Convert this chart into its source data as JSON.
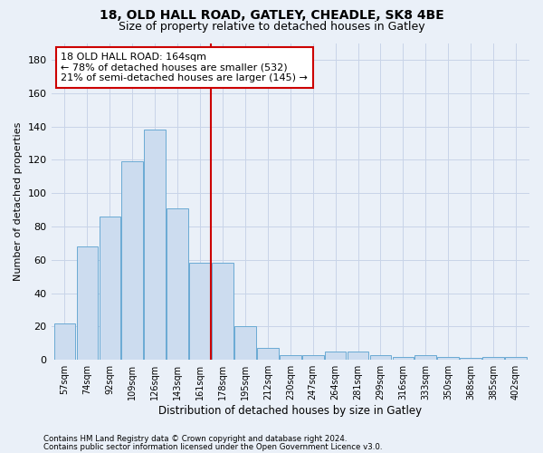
{
  "title1": "18, OLD HALL ROAD, GATLEY, CHEADLE, SK8 4BE",
  "title2": "Size of property relative to detached houses in Gatley",
  "xlabel": "Distribution of detached houses by size in Gatley",
  "ylabel": "Number of detached properties",
  "categories": [
    "57sqm",
    "74sqm",
    "92sqm",
    "109sqm",
    "126sqm",
    "143sqm",
    "161sqm",
    "178sqm",
    "195sqm",
    "212sqm",
    "230sqm",
    "247sqm",
    "264sqm",
    "281sqm",
    "299sqm",
    "316sqm",
    "333sqm",
    "350sqm",
    "368sqm",
    "385sqm",
    "402sqm"
  ],
  "values": [
    22,
    68,
    86,
    119,
    138,
    91,
    58,
    58,
    20,
    7,
    3,
    3,
    5,
    5,
    3,
    2,
    3,
    2,
    1,
    2,
    2
  ],
  "bar_color": "#ccdcef",
  "bar_edge_color": "#6aaad4",
  "vline_color": "#cc0000",
  "annotation_text": "18 OLD HALL ROAD: 164sqm\n← 78% of detached houses are smaller (532)\n21% of semi-detached houses are larger (145) →",
  "annotation_box_color": "#ffffff",
  "annotation_box_edge": "#cc0000",
  "annotation_fontsize": 8,
  "ylim": [
    0,
    190
  ],
  "yticks": [
    0,
    20,
    40,
    60,
    80,
    100,
    120,
    140,
    160,
    180
  ],
  "grid_color": "#c8d4e8",
  "footnote1": "Contains HM Land Registry data © Crown copyright and database right 2024.",
  "footnote2": "Contains public sector information licensed under the Open Government Licence v3.0.",
  "bg_color": "#eaf0f8"
}
